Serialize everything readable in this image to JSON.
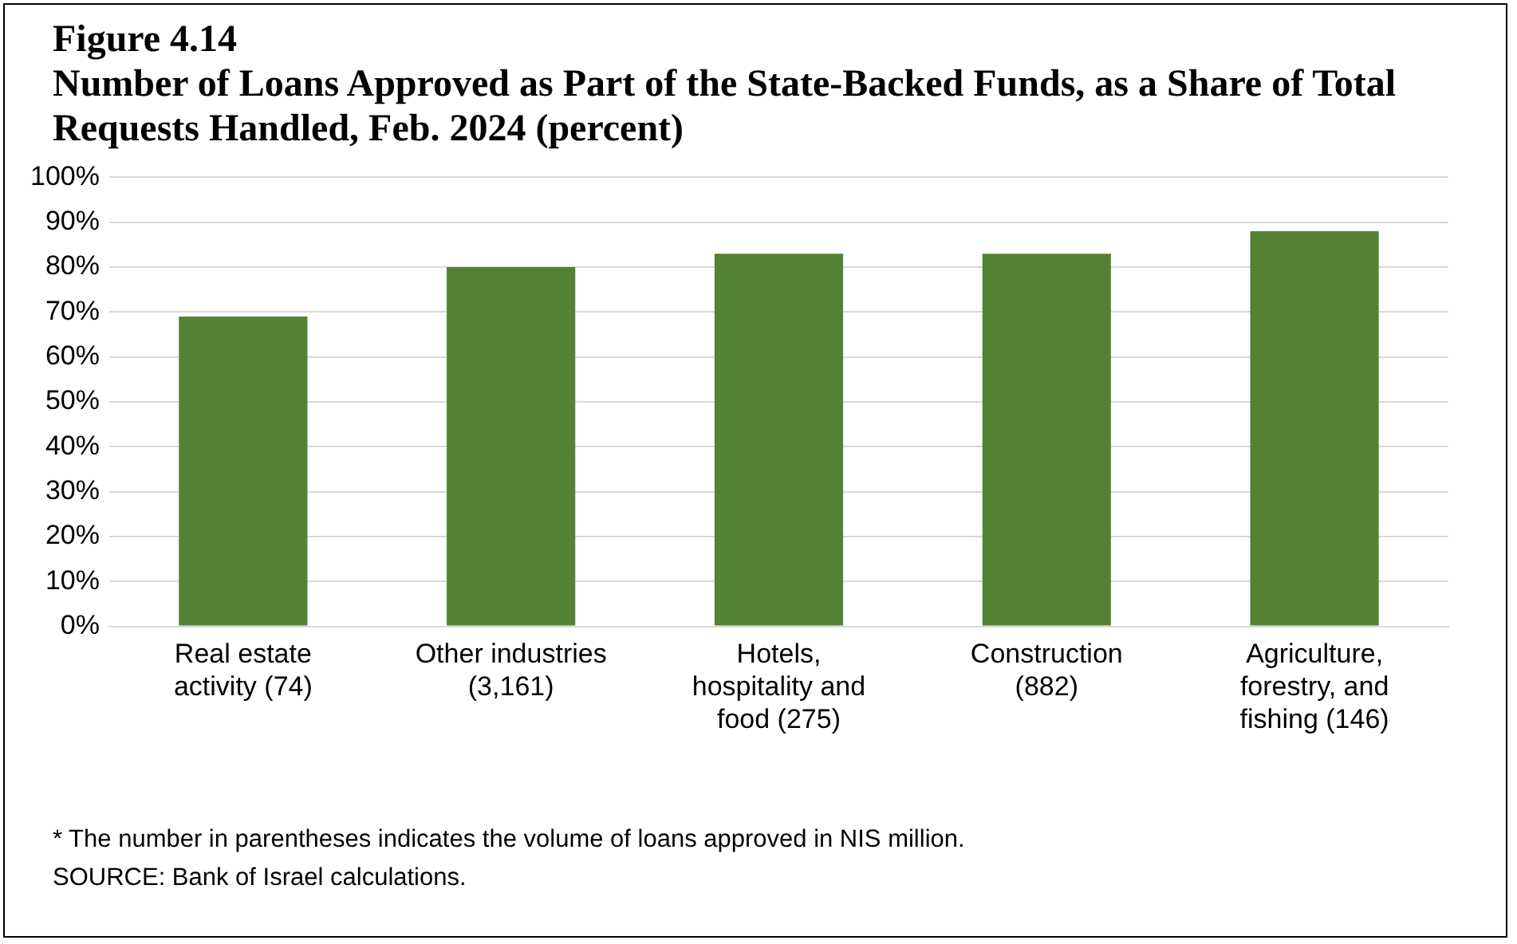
{
  "chart_data": {
    "type": "bar",
    "title": "Figure 4.14",
    "subtitle": "Number of Loans Approved as Part of the State-Backed Funds, as a Share of Total Requests Handled, Feb. 2024 (percent)",
    "categories": [
      "Real estate activity (74)",
      "Other industries (3,161)",
      "Hotels, hospitality and food (275)",
      "Construction (882)",
      "Agriculture, forestry, and fishing (146)"
    ],
    "values": [
      69,
      80,
      83,
      83,
      88
    ],
    "color": "#548235",
    "ylim": [
      0,
      100
    ],
    "yticks": [
      {
        "value": 0,
        "label": "0%"
      },
      {
        "value": 10,
        "label": "10%"
      },
      {
        "value": 20,
        "label": "20%"
      },
      {
        "value": 30,
        "label": "30%"
      },
      {
        "value": 40,
        "label": "40%"
      },
      {
        "value": 50,
        "label": "50%"
      },
      {
        "value": 60,
        "label": "60%"
      },
      {
        "value": 70,
        "label": "70%"
      },
      {
        "value": 80,
        "label": "80%"
      },
      {
        "value": 90,
        "label": "90%"
      },
      {
        "value": 100,
        "label": "100%"
      }
    ],
    "grid": "y",
    "legend": false,
    "annotations": [
      "* The number in parentheses indicates the volume of loans approved in NIS million.",
      "SOURCE: Bank of Israel calculations."
    ]
  }
}
